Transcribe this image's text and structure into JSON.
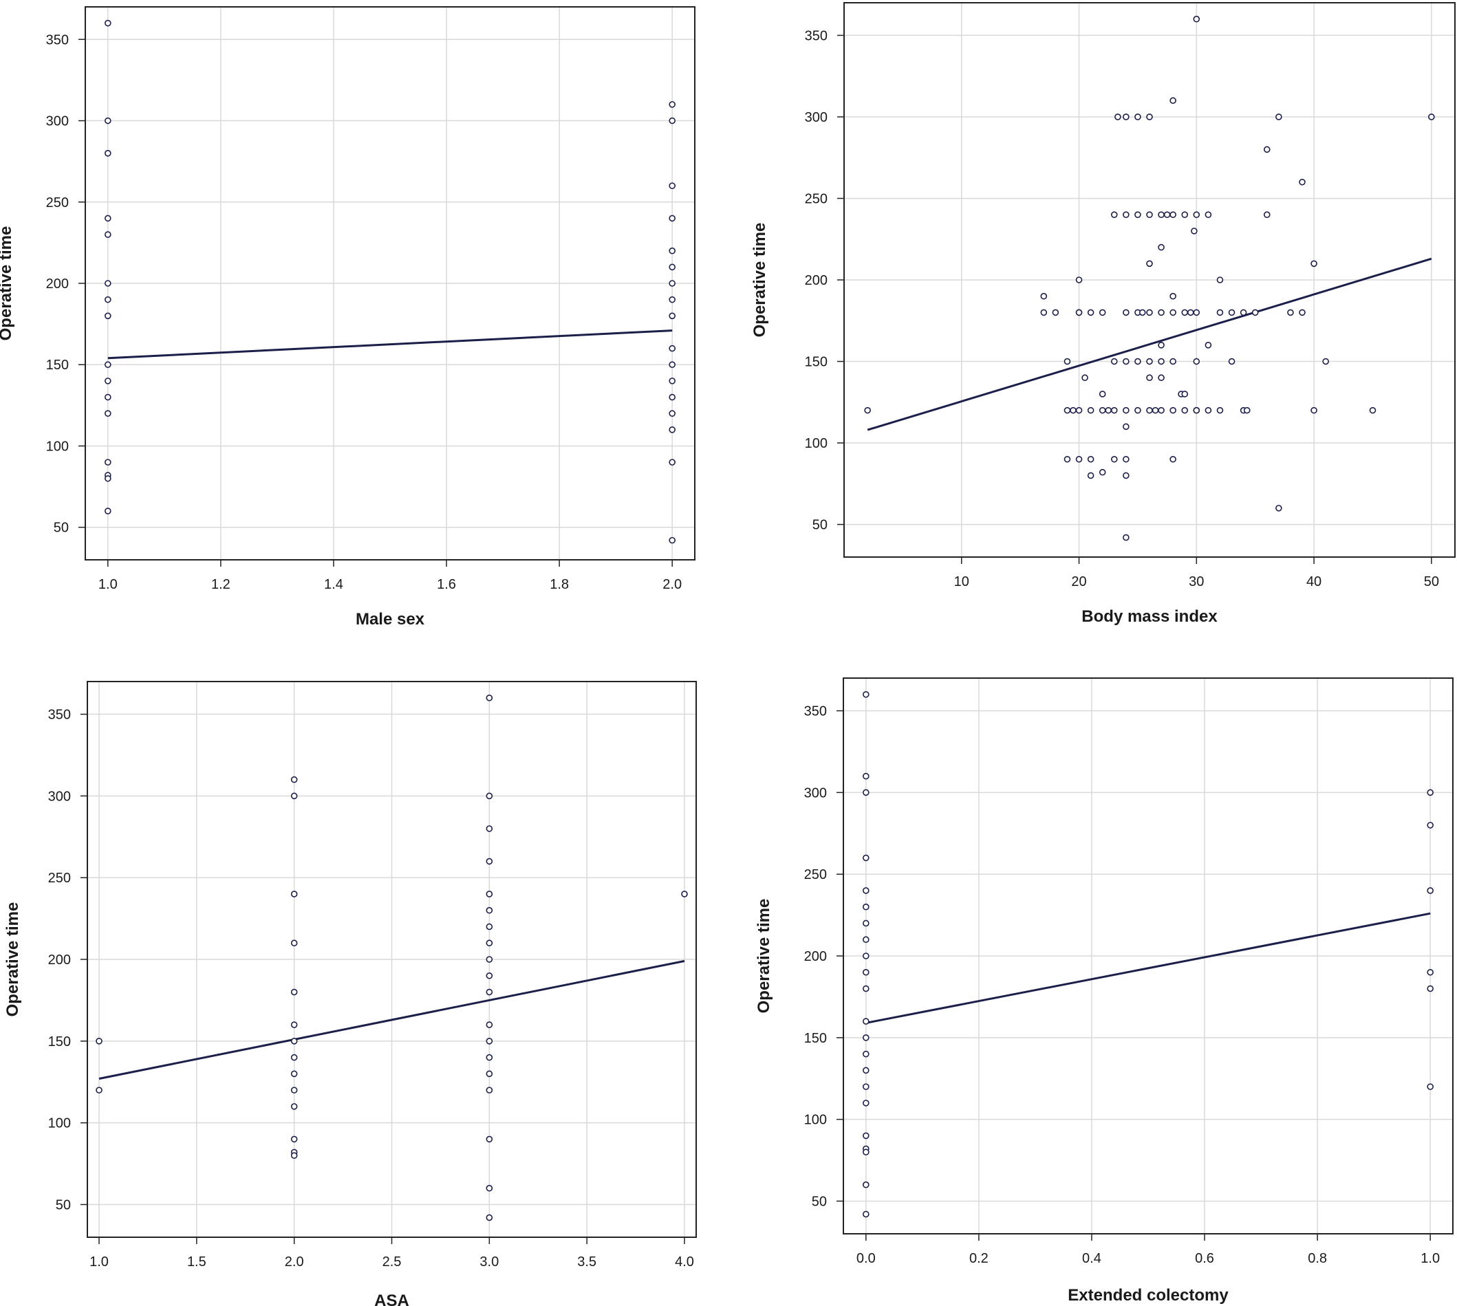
{
  "figure": {
    "background": "#ffffff",
    "grid_color": "#d9d9d9",
    "line_color": "#1b1f4a",
    "point_color": "#1b1f4a",
    "frame_color": "#222222"
  },
  "chart_data": [
    {
      "id": "male-sex",
      "type": "scatter",
      "xlabel": "Male sex",
      "ylabel": "Operative time",
      "xlim": [
        0.96,
        2.04
      ],
      "ylim": [
        30,
        370
      ],
      "xticks": [
        1.0,
        1.2,
        1.4,
        1.6,
        1.8,
        2.0
      ],
      "xtick_labels": [
        "1.0",
        "1.2",
        "1.4",
        "1.6",
        "1.8",
        "2.0"
      ],
      "yticks": [
        50,
        100,
        150,
        200,
        250,
        300,
        350
      ],
      "ytick_labels": [
        "50",
        "100",
        "150",
        "200",
        "250",
        "300",
        "350"
      ],
      "grid": true,
      "points": [
        [
          1,
          360
        ],
        [
          1,
          300
        ],
        [
          1,
          280
        ],
        [
          1,
          240
        ],
        [
          1,
          230
        ],
        [
          1,
          200
        ],
        [
          1,
          190
        ],
        [
          1,
          180
        ],
        [
          1,
          150
        ],
        [
          1,
          140
        ],
        [
          1,
          130
        ],
        [
          1,
          120
        ],
        [
          1,
          90
        ],
        [
          1,
          82
        ],
        [
          1,
          80
        ],
        [
          1,
          60
        ],
        [
          2,
          310
        ],
        [
          2,
          300
        ],
        [
          2,
          260
        ],
        [
          2,
          240
        ],
        [
          2,
          220
        ],
        [
          2,
          210
        ],
        [
          2,
          200
        ],
        [
          2,
          190
        ],
        [
          2,
          180
        ],
        [
          2,
          160
        ],
        [
          2,
          150
        ],
        [
          2,
          140
        ],
        [
          2,
          130
        ],
        [
          2,
          120
        ],
        [
          2,
          110
        ],
        [
          2,
          90
        ],
        [
          2,
          42
        ]
      ],
      "fit_line": [
        [
          1.0,
          154
        ],
        [
          2.0,
          171
        ]
      ]
    },
    {
      "id": "bmi",
      "type": "scatter",
      "xlabel": "Body mass index",
      "ylabel": "Operative time",
      "xlim": [
        0,
        52
      ],
      "ylim": [
        30,
        370
      ],
      "xticks": [
        10,
        20,
        30,
        40,
        50
      ],
      "xtick_labels": [
        "10",
        "20",
        "30",
        "40",
        "50"
      ],
      "yticks": [
        50,
        100,
        150,
        200,
        250,
        300,
        350
      ],
      "ytick_labels": [
        "50",
        "100",
        "150",
        "200",
        "250",
        "300",
        "350"
      ],
      "grid": true,
      "points": [
        [
          2,
          120
        ],
        [
          17,
          190
        ],
        [
          17,
          180
        ],
        [
          18,
          180
        ],
        [
          19,
          150
        ],
        [
          19,
          120
        ],
        [
          19,
          90
        ],
        [
          19.5,
          120
        ],
        [
          20,
          200
        ],
        [
          20,
          180
        ],
        [
          20,
          180
        ],
        [
          20,
          120
        ],
        [
          20,
          90
        ],
        [
          20.5,
          140
        ],
        [
          21,
          180
        ],
        [
          21,
          120
        ],
        [
          21,
          90
        ],
        [
          21,
          80
        ],
        [
          22,
          180
        ],
        [
          22,
          130
        ],
        [
          22,
          120
        ],
        [
          22,
          82
        ],
        [
          22.5,
          120
        ],
        [
          23,
          240
        ],
        [
          23,
          150
        ],
        [
          23,
          120
        ],
        [
          23,
          90
        ],
        [
          23.3,
          300
        ],
        [
          24,
          300
        ],
        [
          24,
          240
        ],
        [
          24,
          180
        ],
        [
          24,
          150
        ],
        [
          24,
          120
        ],
        [
          24,
          110
        ],
        [
          24,
          90
        ],
        [
          24,
          80
        ],
        [
          24,
          42
        ],
        [
          25,
          300
        ],
        [
          25,
          240
        ],
        [
          25,
          180
        ],
        [
          25,
          150
        ],
        [
          25,
          120
        ],
        [
          25.4,
          180
        ],
        [
          26,
          300
        ],
        [
          26,
          240
        ],
        [
          26,
          210
        ],
        [
          26,
          180
        ],
        [
          26,
          150
        ],
        [
          26,
          140
        ],
        [
          26,
          120
        ],
        [
          26.5,
          120
        ],
        [
          27,
          240
        ],
        [
          27,
          220
        ],
        [
          27,
          180
        ],
        [
          27,
          160
        ],
        [
          27,
          150
        ],
        [
          27,
          140
        ],
        [
          27,
          120
        ],
        [
          27.5,
          240
        ],
        [
          28,
          310
        ],
        [
          28,
          240
        ],
        [
          28,
          190
        ],
        [
          28,
          180
        ],
        [
          28,
          150
        ],
        [
          28,
          120
        ],
        [
          28,
          90
        ],
        [
          28.7,
          130
        ],
        [
          29,
          240
        ],
        [
          29,
          180
        ],
        [
          29,
          130
        ],
        [
          29,
          120
        ],
        [
          29.5,
          180
        ],
        [
          29.8,
          230
        ],
        [
          30,
          360
        ],
        [
          30,
          240
        ],
        [
          30,
          180
        ],
        [
          30,
          150
        ],
        [
          30,
          120
        ],
        [
          30,
          120
        ],
        [
          31,
          240
        ],
        [
          31,
          160
        ],
        [
          31,
          120
        ],
        [
          32,
          200
        ],
        [
          32,
          180
        ],
        [
          32,
          120
        ],
        [
          33,
          180
        ],
        [
          33,
          150
        ],
        [
          34,
          180
        ],
        [
          34,
          120
        ],
        [
          34.3,
          120
        ],
        [
          35,
          180
        ],
        [
          36,
          280
        ],
        [
          36,
          240
        ],
        [
          37,
          300
        ],
        [
          37,
          60
        ],
        [
          38,
          180
        ],
        [
          39,
          260
        ],
        [
          39,
          180
        ],
        [
          40,
          210
        ],
        [
          40,
          120
        ],
        [
          41,
          150
        ],
        [
          45,
          120
        ],
        [
          50,
          300
        ]
      ],
      "fit_line": [
        [
          2,
          108
        ],
        [
          50,
          213
        ]
      ]
    },
    {
      "id": "asa",
      "type": "scatter",
      "xlabel": "ASA",
      "ylabel": "Operative time",
      "xlim": [
        0.94,
        4.06
      ],
      "ylim": [
        30,
        370
      ],
      "xticks": [
        1.0,
        1.5,
        2.0,
        2.5,
        3.0,
        3.5,
        4.0
      ],
      "xtick_labels": [
        "1.0",
        "1.5",
        "2.0",
        "2.5",
        "3.0",
        "3.5",
        "4.0"
      ],
      "yticks": [
        50,
        100,
        150,
        200,
        250,
        300,
        350
      ],
      "ytick_labels": [
        "50",
        "100",
        "150",
        "200",
        "250",
        "300",
        "350"
      ],
      "grid": true,
      "points": [
        [
          1,
          150
        ],
        [
          1,
          120
        ],
        [
          2,
          310
        ],
        [
          2,
          300
        ],
        [
          2,
          240
        ],
        [
          2,
          210
        ],
        [
          2,
          180
        ],
        [
          2,
          160
        ],
        [
          2,
          150
        ],
        [
          2,
          140
        ],
        [
          2,
          130
        ],
        [
          2,
          120
        ],
        [
          2,
          110
        ],
        [
          2,
          90
        ],
        [
          2,
          82
        ],
        [
          2,
          80
        ],
        [
          3,
          360
        ],
        [
          3,
          300
        ],
        [
          3,
          280
        ],
        [
          3,
          260
        ],
        [
          3,
          240
        ],
        [
          3,
          230
        ],
        [
          3,
          220
        ],
        [
          3,
          210
        ],
        [
          3,
          200
        ],
        [
          3,
          190
        ],
        [
          3,
          180
        ],
        [
          3,
          160
        ],
        [
          3,
          150
        ],
        [
          3,
          140
        ],
        [
          3,
          130
        ],
        [
          3,
          120
        ],
        [
          3,
          90
        ],
        [
          3,
          60
        ],
        [
          3,
          42
        ],
        [
          4,
          240
        ]
      ],
      "fit_line": [
        [
          1.0,
          127
        ],
        [
          4.0,
          199
        ]
      ]
    },
    {
      "id": "extended-colectomy",
      "type": "scatter",
      "xlabel": "Extended colectomy",
      "ylabel": "Operative time",
      "xlim": [
        -0.04,
        1.04
      ],
      "ylim": [
        30,
        370
      ],
      "xticks": [
        0.0,
        0.2,
        0.4,
        0.6,
        0.8,
        1.0
      ],
      "xtick_labels": [
        "0.0",
        "0.2",
        "0.4",
        "0.6",
        "0.8",
        "1.0"
      ],
      "yticks": [
        50,
        100,
        150,
        200,
        250,
        300,
        350
      ],
      "ytick_labels": [
        "50",
        "100",
        "150",
        "200",
        "250",
        "300",
        "350"
      ],
      "grid": true,
      "points": [
        [
          0,
          360
        ],
        [
          0,
          310
        ],
        [
          0,
          300
        ],
        [
          0,
          260
        ],
        [
          0,
          240
        ],
        [
          0,
          230
        ],
        [
          0,
          220
        ],
        [
          0,
          210
        ],
        [
          0,
          200
        ],
        [
          0,
          190
        ],
        [
          0,
          180
        ],
        [
          0,
          160
        ],
        [
          0,
          150
        ],
        [
          0,
          140
        ],
        [
          0,
          130
        ],
        [
          0,
          120
        ],
        [
          0,
          110
        ],
        [
          0,
          90
        ],
        [
          0,
          82
        ],
        [
          0,
          80
        ],
        [
          0,
          60
        ],
        [
          0,
          42
        ],
        [
          1,
          300
        ],
        [
          1,
          280
        ],
        [
          1,
          240
        ],
        [
          1,
          190
        ],
        [
          1,
          180
        ],
        [
          1,
          120
        ]
      ],
      "fit_line": [
        [
          0,
          159
        ],
        [
          1,
          226
        ]
      ]
    }
  ]
}
